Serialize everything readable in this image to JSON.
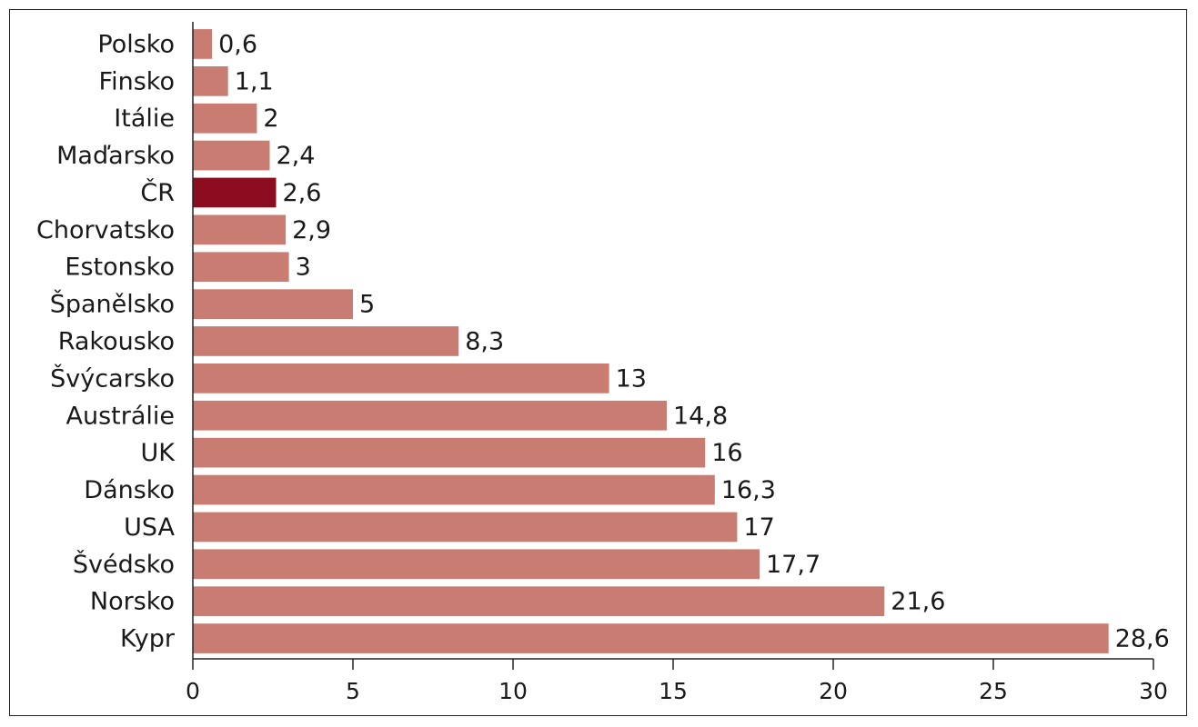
{
  "colors": {
    "bar": "#c97d72",
    "highlight": "#8b0d1f",
    "axis": "#222222"
  },
  "chart_data": {
    "type": "bar",
    "orientation": "horizontal",
    "categories": [
      "Polsko",
      "Finsko",
      "Itálie",
      "Maďarsko",
      "ČR",
      "Chorvatsko",
      "Estonsko",
      "Španělsko",
      "Rakousko",
      "Švýcarsko",
      "Austrálie",
      "UK",
      "Dánsko",
      "USA",
      "Švédsko",
      "Norsko",
      "Kypr"
    ],
    "values": [
      0.6,
      1.1,
      2,
      2.4,
      2.6,
      2.9,
      3,
      5,
      8.3,
      13,
      14.8,
      16,
      16.3,
      17,
      17.7,
      21.6,
      28.6
    ],
    "value_labels": [
      "0,6",
      "1,1",
      "2",
      "2,4",
      "2,6",
      "2,9",
      "3",
      "5",
      "8,3",
      "13",
      "14,8",
      "16",
      "16,3",
      "17",
      "17,7",
      "21,6",
      "28,6"
    ],
    "highlight_category": "ČR",
    "xlim": [
      0,
      30
    ],
    "xticks": [
      0,
      5,
      10,
      15,
      20,
      25,
      30
    ],
    "xtick_labels": [
      "0",
      "5",
      "10",
      "15",
      "20",
      "25",
      "30"
    ],
    "title": "",
    "xlabel": "",
    "ylabel": "",
    "grid": false,
    "legend": "none"
  }
}
